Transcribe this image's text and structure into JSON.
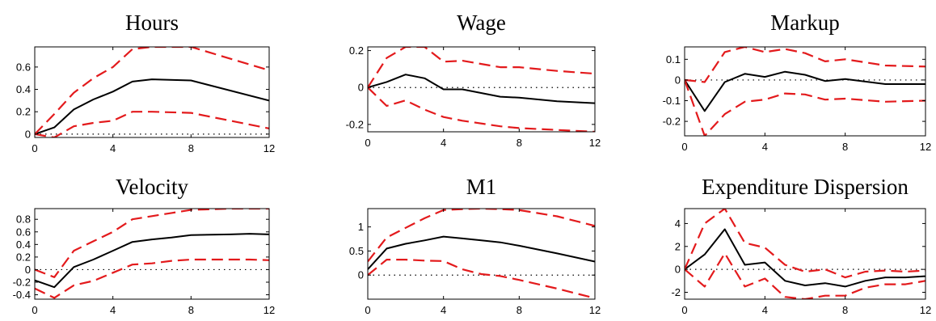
{
  "figure": {
    "band_color": "#e31a1c",
    "point_color": "#000000"
  },
  "chart_data": [
    {
      "type": "line",
      "title": "Hours",
      "x": [
        0,
        1,
        2,
        3,
        4,
        5,
        6,
        8,
        12
      ],
      "xlim": [
        0,
        12
      ],
      "ylim": [
        -0.03,
        0.78
      ],
      "xticks": [
        0,
        4,
        8,
        12
      ],
      "yticks": [
        0,
        0.2,
        0.4,
        0.6
      ],
      "ytick_labels": [
        "0",
        "0.2",
        "0.4",
        "0.6"
      ],
      "series": [
        {
          "role": "estimate",
          "values": [
            0,
            0.06,
            0.22,
            0.31,
            0.38,
            0.47,
            0.49,
            0.48,
            0.3
          ]
        },
        {
          "role": "upper",
          "values": [
            0,
            0.18,
            0.37,
            0.5,
            0.6,
            0.76,
            0.78,
            0.78,
            0.57
          ]
        },
        {
          "role": "lower",
          "values": [
            0,
            -0.03,
            0.07,
            0.1,
            0.12,
            0.2,
            0.2,
            0.19,
            0.05
          ]
        }
      ]
    },
    {
      "type": "line",
      "title": "Wage",
      "x": [
        0,
        1,
        2,
        3,
        4,
        5,
        7,
        8,
        10,
        12
      ],
      "xlim": [
        0,
        12
      ],
      "ylim": [
        -0.24,
        0.22
      ],
      "xticks": [
        0,
        4,
        8,
        12
      ],
      "yticks": [
        -0.2,
        0,
        0.2
      ],
      "ytick_labels": [
        "-0.2",
        "0",
        "0.2"
      ],
      "series": [
        {
          "role": "estimate",
          "values": [
            0,
            0.03,
            0.07,
            0.05,
            -0.01,
            -0.01,
            -0.05,
            -0.055,
            -0.075,
            -0.085
          ]
        },
        {
          "role": "upper",
          "values": [
            0,
            0.16,
            0.22,
            0.22,
            0.14,
            0.145,
            0.11,
            0.11,
            0.09,
            0.075
          ]
        },
        {
          "role": "lower",
          "values": [
            0,
            -0.1,
            -0.07,
            -0.12,
            -0.16,
            -0.18,
            -0.21,
            -0.22,
            -0.23,
            -0.24
          ]
        }
      ]
    },
    {
      "type": "line",
      "title": "Markup",
      "x": [
        0,
        1,
        2,
        3,
        4,
        5,
        6,
        7,
        8,
        10,
        12
      ],
      "xlim": [
        0,
        12
      ],
      "ylim": [
        -0.27,
        0.16
      ],
      "xticks": [
        0,
        4,
        8,
        12
      ],
      "yticks": [
        -0.2,
        -0.1,
        0,
        0.1
      ],
      "ytick_labels": [
        "-0.2",
        "-0.1",
        "0",
        "0.1"
      ],
      "series": [
        {
          "role": "estimate",
          "values": [
            0,
            -0.15,
            -0.01,
            0.03,
            0.015,
            0.04,
            0.025,
            -0.005,
            0.005,
            -0.02,
            -0.02
          ]
        },
        {
          "role": "upper",
          "values": [
            0,
            -0.01,
            0.135,
            0.16,
            0.135,
            0.15,
            0.13,
            0.09,
            0.1,
            0.07,
            0.065
          ]
        },
        {
          "role": "lower",
          "values": [
            0,
            -0.27,
            -0.165,
            -0.105,
            -0.095,
            -0.065,
            -0.07,
            -0.095,
            -0.09,
            -0.105,
            -0.1
          ]
        }
      ]
    },
    {
      "type": "line",
      "title": "Velocity",
      "x": [
        0,
        1,
        2,
        3,
        4,
        5,
        6,
        7,
        8,
        10,
        11,
        12
      ],
      "xlim": [
        0,
        12
      ],
      "ylim": [
        -0.47,
        0.97
      ],
      "xticks": [
        0,
        4,
        8,
        12
      ],
      "yticks": [
        -0.4,
        -0.2,
        0,
        0.2,
        0.4,
        0.6,
        0.8
      ],
      "ytick_labels": [
        "-0.4",
        "-0.2",
        "0",
        "0.2",
        "0.4",
        "0.6",
        "0.8"
      ],
      "series": [
        {
          "role": "estimate",
          "values": [
            -0.17,
            -0.28,
            0.04,
            0.16,
            0.3,
            0.44,
            0.48,
            0.51,
            0.55,
            0.56,
            0.57,
            0.56
          ]
        },
        {
          "role": "upper",
          "values": [
            0.0,
            -0.12,
            0.3,
            0.45,
            0.6,
            0.8,
            0.85,
            0.9,
            0.95,
            0.97,
            0.97,
            0.97
          ]
        },
        {
          "role": "lower",
          "values": [
            -0.3,
            -0.45,
            -0.25,
            -0.18,
            -0.05,
            0.08,
            0.1,
            0.14,
            0.16,
            0.16,
            0.16,
            0.15
          ]
        }
      ]
    },
    {
      "type": "line",
      "title": "M1",
      "x": [
        0,
        1,
        2,
        3,
        4,
        5,
        6,
        7,
        8,
        10,
        12
      ],
      "xlim": [
        0,
        12
      ],
      "ylim": [
        -0.5,
        1.38
      ],
      "xticks": [
        0,
        4,
        8,
        12
      ],
      "yticks": [
        0,
        0.5,
        1
      ],
      "ytick_labels": [
        "0",
        "0.5",
        "1"
      ],
      "series": [
        {
          "role": "estimate",
          "values": [
            0.12,
            0.55,
            0.65,
            0.72,
            0.8,
            0.76,
            0.72,
            0.68,
            0.61,
            0.45,
            0.28
          ]
        },
        {
          "role": "upper",
          "values": [
            0.28,
            0.78,
            0.98,
            1.18,
            1.35,
            1.37,
            1.38,
            1.37,
            1.35,
            1.22,
            1.02
          ]
        },
        {
          "role": "lower",
          "values": [
            0.0,
            0.32,
            0.32,
            0.3,
            0.29,
            0.12,
            0.02,
            -0.02,
            -0.1,
            -0.28,
            -0.48
          ]
        }
      ]
    },
    {
      "type": "line",
      "title": "Expenditure Dispersion",
      "x": [
        0,
        1,
        2,
        3,
        4,
        5,
        6,
        7,
        8,
        9,
        10,
        11,
        12
      ],
      "xlim": [
        0,
        12
      ],
      "ylim": [
        -2.6,
        5.3
      ],
      "xticks": [
        0,
        4,
        8,
        12
      ],
      "yticks": [
        -2,
        0,
        2,
        4
      ],
      "ytick_labels": [
        "-2",
        "0",
        "2",
        "4"
      ],
      "series": [
        {
          "role": "estimate",
          "values": [
            0,
            1.3,
            3.5,
            0.4,
            0.6,
            -1.0,
            -1.4,
            -1.2,
            -1.5,
            -1.0,
            -0.7,
            -0.7,
            -0.6
          ]
        },
        {
          "role": "upper",
          "values": [
            0,
            4.0,
            5.3,
            2.3,
            1.9,
            0.4,
            -0.2,
            0.0,
            -0.7,
            -0.2,
            -0.1,
            -0.2,
            -0.1
          ]
        },
        {
          "role": "lower",
          "values": [
            0,
            -1.5,
            1.4,
            -1.5,
            -0.8,
            -2.4,
            -2.6,
            -2.3,
            -2.3,
            -1.6,
            -1.3,
            -1.3,
            -1.0
          ]
        }
      ]
    }
  ]
}
